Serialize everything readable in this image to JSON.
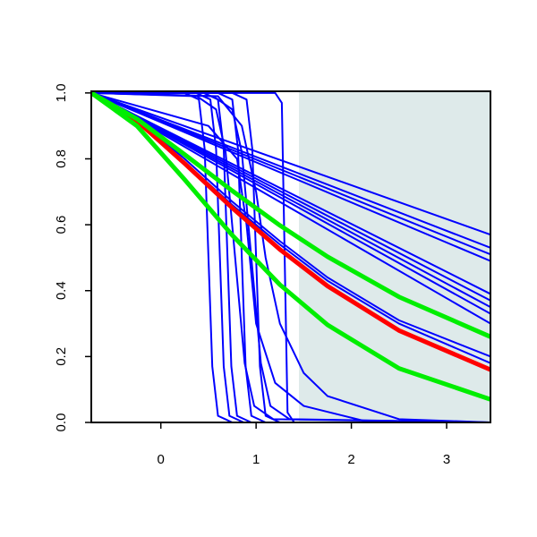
{
  "chart_data": {
    "type": "line",
    "xlim": [
      -0.73,
      3.46
    ],
    "ylim": [
      0,
      1.005
    ],
    "xticks": [
      0,
      1,
      2,
      3
    ],
    "yticks": [
      {
        "value": 0,
        "label": "0.0"
      },
      {
        "value": 0.2,
        "label": "0.2"
      },
      {
        "value": 0.4,
        "label": "0.4"
      },
      {
        "value": 0.6,
        "label": "0.6"
      },
      {
        "value": 0.8,
        "label": "0.8"
      },
      {
        "value": 1,
        "label": "1.0"
      }
    ],
    "shade": {
      "xrange": [
        1.45,
        3.46
      ],
      "color": "#deeaea"
    },
    "series": [
      {
        "color": "#0000ff",
        "lwd": 2,
        "x": [
          -0.73,
          3.46
        ],
        "values": [
          1,
          0.57
        ]
      },
      {
        "color": "#0000ff",
        "lwd": 2,
        "x": [
          -0.73,
          3.46
        ],
        "values": [
          1,
          0.53
        ]
      },
      {
        "color": "#0000ff",
        "lwd": 2,
        "x": [
          -0.73,
          3.46
        ],
        "values": [
          1,
          0.51
        ]
      },
      {
        "color": "#0000ff",
        "lwd": 2,
        "x": [
          -0.73,
          3.46
        ],
        "values": [
          1,
          0.49
        ]
      },
      {
        "color": "#0000ff",
        "lwd": 2,
        "x": [
          -0.73,
          3.46
        ],
        "values": [
          1,
          0.39
        ]
      },
      {
        "color": "#0000ff",
        "lwd": 2,
        "x": [
          -0.73,
          3.46
        ],
        "values": [
          1,
          0.37
        ]
      },
      {
        "color": "#0000ff",
        "lwd": 2,
        "x": [
          -0.73,
          3.46
        ],
        "values": [
          1,
          0.35
        ]
      },
      {
        "color": "#0000ff",
        "lwd": 2,
        "x": [
          -0.73,
          3.46
        ],
        "values": [
          1,
          0.33
        ]
      },
      {
        "color": "#0000ff",
        "lwd": 2,
        "x": [
          -0.73,
          3.46
        ],
        "values": [
          1,
          0.3
        ]
      },
      {
        "color": "#0000ff",
        "lwd": 2,
        "x": [
          -0.73,
          -0.25,
          0.25,
          0.75,
          1.25,
          1.75,
          2.5,
          3.46
        ],
        "values": [
          1,
          0.92,
          0.8,
          0.67,
          0.55,
          0.44,
          0.31,
          0.2
        ]
      },
      {
        "color": "#0000ff",
        "lwd": 2,
        "x": [
          -0.73,
          -0.25,
          0.25,
          0.75,
          1.25,
          1.75,
          2.5,
          3.46
        ],
        "values": [
          1,
          0.92,
          0.79,
          0.66,
          0.54,
          0.43,
          0.3,
          0.18
        ]
      },
      {
        "color": "#0000ff",
        "lwd": 2,
        "x": [
          -0.73,
          0.25,
          0.4,
          0.46,
          0.5,
          0.54,
          0.6,
          0.75,
          3.46
        ],
        "values": [
          1,
          1,
          0.98,
          0.83,
          0.5,
          0.17,
          0.02,
          0,
          0
        ]
      },
      {
        "color": "#0000ff",
        "lwd": 2,
        "x": [
          -0.73,
          0.37,
          0.52,
          0.58,
          0.62,
          0.66,
          0.72,
          0.87,
          3.46
        ],
        "values": [
          1,
          1,
          0.98,
          0.83,
          0.5,
          0.17,
          0.02,
          0,
          0
        ]
      },
      {
        "color": "#0000ff",
        "lwd": 2,
        "x": [
          -0.73,
          0.45,
          0.6,
          0.66,
          0.7,
          0.74,
          0.8,
          0.95,
          3.46
        ],
        "values": [
          1,
          1,
          0.98,
          0.83,
          0.5,
          0.17,
          0.02,
          0,
          0
        ]
      },
      {
        "color": "#0000ff",
        "lwd": 2,
        "x": [
          -0.73,
          0.6,
          0.75,
          0.81,
          0.85,
          0.89,
          0.95,
          1.1,
          3.46
        ],
        "values": [
          1,
          1,
          0.98,
          0.83,
          0.5,
          0.17,
          0.02,
          0,
          0
        ]
      },
      {
        "color": "#0000ff",
        "lwd": 2,
        "x": [
          -0.73,
          0.75,
          0.9,
          0.96,
          1.0,
          1.04,
          1.1,
          1.25,
          3.46
        ],
        "values": [
          1,
          1,
          0.98,
          0.83,
          0.5,
          0.17,
          0.02,
          0,
          0
        ]
      },
      {
        "color": "#0000ff",
        "lwd": 2,
        "x": [
          -0.73,
          1.2,
          1.27,
          1.3,
          1.33,
          1.4,
          3.46
        ],
        "values": [
          1,
          1,
          0.97,
          0.5,
          0.03,
          0,
          0
        ]
      },
      {
        "color": "#0000ff",
        "lwd": 2,
        "x": [
          -0.73,
          0.38,
          0.58,
          0.68,
          0.78,
          0.88,
          0.98,
          1.18,
          3.46
        ],
        "values": [
          1,
          0.99,
          0.95,
          0.82,
          0.5,
          0.18,
          0.05,
          0.01,
          0
        ]
      },
      {
        "color": "#0000ff",
        "lwd": 2,
        "x": [
          -0.73,
          0.55,
          0.75,
          0.85,
          0.95,
          1.05,
          1.15,
          1.35,
          3.46
        ],
        "values": [
          1,
          0.99,
          0.95,
          0.82,
          0.5,
          0.18,
          0.05,
          0.01,
          0
        ]
      },
      {
        "color": "#0000ff",
        "lwd": 2,
        "x": [
          -0.73,
          0.6,
          0.85,
          1.0,
          1.1,
          1.25,
          1.5,
          1.75,
          2.5,
          3.46
        ],
        "values": [
          1,
          0.99,
          0.9,
          0.7,
          0.5,
          0.3,
          0.15,
          0.08,
          0.01,
          0
        ]
      },
      {
        "color": "#0000ff",
        "lwd": 2,
        "x": [
          -0.73,
          0.5,
          0.8,
          0.9,
          1.0,
          1.2,
          1.5,
          2.2,
          3.46
        ],
        "values": [
          1,
          0.9,
          0.8,
          0.6,
          0.3,
          0.12,
          0.05,
          0,
          0
        ]
      },
      {
        "color": "#ff0000",
        "lwd": 5,
        "x": [
          -0.73,
          -0.25,
          0.25,
          0.75,
          1.25,
          1.75,
          2.5,
          3.46
        ],
        "values": [
          1,
          0.915,
          0.786,
          0.651,
          0.525,
          0.414,
          0.279,
          0.16
        ]
      },
      {
        "color": "#00ee00",
        "lwd": 5,
        "x": [
          -0.73,
          -0.25,
          0.25,
          0.75,
          1.25,
          1.75,
          2.5,
          3.46
        ],
        "values": [
          1,
          0.9,
          0.737,
          0.568,
          0.418,
          0.296,
          0.164,
          0.07
        ]
      },
      {
        "color": "#00ee00",
        "lwd": 5,
        "x": [
          -0.73,
          -0.25,
          0.25,
          0.75,
          1.25,
          1.75,
          2.5,
          3.46
        ],
        "values": [
          1,
          0.921,
          0.813,
          0.703,
          0.598,
          0.503,
          0.381,
          0.26
        ]
      }
    ]
  }
}
